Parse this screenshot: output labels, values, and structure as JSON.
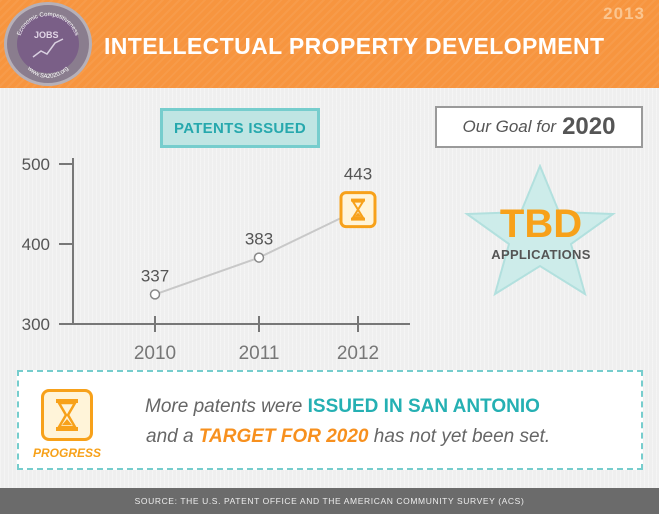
{
  "header": {
    "title": "INTELLECTUAL PROPERTY DEVELOPMENT",
    "year": "2013",
    "logo": {
      "top_text": "Economic Competitiveness",
      "center_text": "JOBS",
      "bottom_text": "www.SA2020.org"
    }
  },
  "badge": {
    "label": "PATENTS ISSUED"
  },
  "goal": {
    "prefix": "Our Goal for",
    "year": "2020",
    "value": "TBD",
    "unit": "APPLICATIONS"
  },
  "chart_data": {
    "type": "line",
    "title": "PATENTS ISSUED",
    "categories": [
      "2010",
      "2011",
      "2012"
    ],
    "values": [
      337,
      383,
      443
    ],
    "data_labels": [
      "337",
      "383",
      "443"
    ],
    "yticks": [
      "300",
      "400",
      "500"
    ],
    "ylim": [
      300,
      500
    ],
    "grid": false,
    "line_color": "#c8c8c8",
    "last_point_icon": "hourglass-icon"
  },
  "progress": {
    "label": "PROGRESS",
    "icon": "hourglass-icon",
    "line1_a": "More patents were ",
    "line1_b": "ISSUED IN SAN ANTONIO",
    "line2_a": "and a ",
    "line2_b": "TARGET FOR 2020",
    "line2_c": " has not yet been set."
  },
  "footer": {
    "source": "SOURCE: THE U.S. PATENT OFFICE AND THE AMERICAN COMMUNITY SURVEY (ACS)"
  },
  "colors": {
    "orange": "#f7953f",
    "teal": "#26a8ad",
    "gold": "#f7a11a",
    "gray": "#6b6b6b"
  }
}
